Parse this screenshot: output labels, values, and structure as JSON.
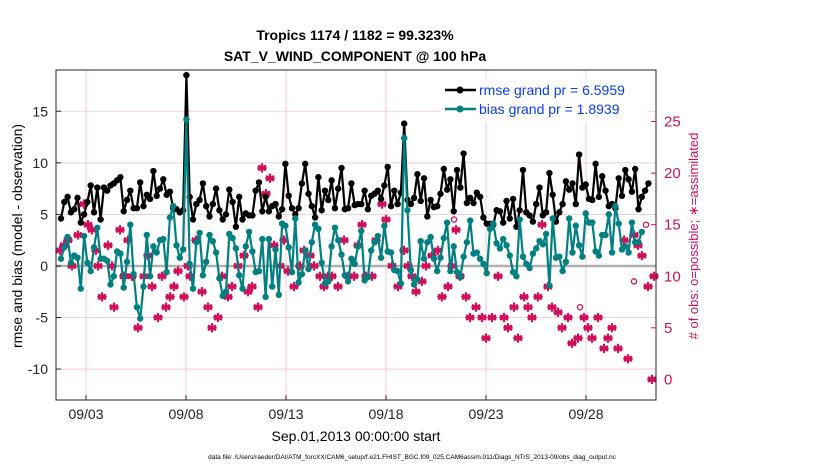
{
  "chart_data": {
    "type": "line",
    "title": "Tropics 1174 / 1182 = 99.323%",
    "subtitle": "SAT_V_WIND_COMPONENT @ 100 hPa",
    "xlabel": "Sep.01,2013 00:00:00 start",
    "ylabel": "rmse and bias (model - observation)",
    "y2label": "# of obs: o=possible; ∗=assimilated",
    "footnote": "data file: /Users/raeder/DAI/ATM_forcXX/CAM6_setup/f.e21.FHIST_BGC.f09_025.CAM6assim.011/Diags_NTrS_2013-09/obs_diag_output.nc",
    "x_range_days": [
      0.5,
      30.5
    ],
    "x_ticks": [
      {
        "day": 2,
        "label": "09/03"
      },
      {
        "day": 7,
        "label": "09/08"
      },
      {
        "day": 12,
        "label": "09/13"
      },
      {
        "day": 17,
        "label": "09/18"
      },
      {
        "day": 22,
        "label": "09/23"
      },
      {
        "day": 27,
        "label": "09/28"
      }
    ],
    "ylim": [
      -13,
      19
    ],
    "y_ticks": [
      -10,
      -5,
      0,
      5,
      10,
      15
    ],
    "y2lim": [
      -2,
      30
    ],
    "y2_ticks": [
      0,
      5,
      10,
      15,
      20,
      25
    ],
    "grid": true,
    "legend_position": "top-right",
    "series": [
      {
        "name": "rmse",
        "legend": "rmse grand pr = 6.5959",
        "color": "#000000",
        "values": [
          4.6,
          6.2,
          6.7,
          5.2,
          5.5,
          6.6,
          4.2,
          5.0,
          6.2,
          7.8,
          5.2,
          7.6,
          4.5,
          7.6,
          7.3,
          7.8,
          8.0,
          8.3,
          8.6,
          5.3,
          6.4,
          7.3,
          5.6,
          5.6,
          8.1,
          5.8,
          6.9,
          6.5,
          9.2,
          6.8,
          7.5,
          8.4,
          6.9,
          7.2,
          5.6,
          5.5,
          5.2,
          5.4,
          18.5,
          6.7,
          4.5,
          6.0,
          6.4,
          8.0,
          5.8,
          4.8,
          6.0,
          7.5,
          5.4,
          4.5,
          5.0,
          7.4,
          6.2,
          3.8,
          6.7,
          4.5,
          5.1,
          4.9,
          4.9,
          7.3,
          8.1,
          5.3,
          6.7,
          5.3,
          5.8,
          6.0,
          4.8,
          5.5,
          9.9,
          6.8,
          5.6,
          5.0,
          5.6,
          8.0,
          9.9,
          7.0,
          5.8,
          4.7,
          8.6,
          5.4,
          7.3,
          6.4,
          8.3,
          5.6,
          7.5,
          9.5,
          5.5,
          5.6,
          8.0,
          5.9,
          6.0,
          6.0,
          7.3,
          5.5,
          6.8,
          7.0,
          7.3,
          6.5,
          7.8,
          9.6,
          5.8,
          7.3,
          6.0,
          7.1,
          13.8,
          6.4,
          6.0,
          6.6,
          8.9,
          6.3,
          8.5,
          4.8,
          6.4,
          5.7,
          5.8,
          7.0,
          9.4,
          7.4,
          8.4,
          5.3,
          9.3,
          7.6,
          10.9,
          6.1,
          6.6,
          6.1,
          7.1,
          6.7,
          4.7,
          4.1,
          4.1,
          4.0,
          5.4,
          5.3,
          4.2,
          6.3,
          4.6,
          6.5,
          3.8,
          5.4,
          9.3,
          5.2,
          4.9,
          4.3,
          6.0,
          7.6,
          4.9,
          5.2,
          9.0,
          6.9,
          4.3,
          5.2,
          6.0,
          8.2,
          7.4,
          8.0,
          6.0,
          10.8,
          7.6,
          7.9,
          6.5,
          6.4,
          9.9,
          6.7,
          8.7,
          7.3,
          5.8,
          6.0,
          5.6,
          8.5,
          6.8,
          9.3,
          8.4,
          7.2,
          9.4,
          5.5,
          6.7,
          7.3,
          8.0
        ]
      },
      {
        "name": "bias",
        "legend": "bias grand pr = 1.8939",
        "color": "#008080",
        "values": [
          0.7,
          1.8,
          2.8,
          0.3,
          1.0,
          0.8,
          -2.2,
          2.9,
          0.3,
          -0.5,
          1.8,
          3.7,
          0.7,
          0.7,
          0.5,
          -1.8,
          -1.0,
          1.4,
          1.2,
          -2.1,
          0.4,
          4.0,
          -0.8,
          -4.0,
          -5.1,
          -2.0,
          3.0,
          -1.0,
          1.9,
          1.3,
          2.5,
          2.6,
          -0.6,
          4.7,
          5.8,
          2.0,
          0.8,
          1.6,
          14.2,
          0.2,
          -2.2,
          2.3,
          3.2,
          -0.9,
          0.4,
          3.0,
          2.4,
          1.3,
          -1.2,
          -2.9,
          -2.5,
          3.1,
          2.7,
          1.7,
          -0.9,
          -2.2,
          1.9,
          3.3,
          1.4,
          -0.6,
          -0.5,
          2.6,
          -3.0,
          2.6,
          -2.0,
          1.6,
          -2.8,
          4.1,
          3.9,
          1.8,
          -0.6,
          4.6,
          -1.6,
          -0.8,
          1.5,
          -0.3,
          2.3,
          4.0,
          3.6,
          0.3,
          -1.7,
          -1.5,
          1.9,
          3.7,
          2.5,
          1.1,
          -0.9,
          -1.5,
          0.7,
          0.2,
          1.9,
          3.4,
          -1.4,
          -1.1,
          1.5,
          2.3,
          2.9,
          0.8,
          3.9,
          1.4,
          1.3,
          -0.4,
          -0.5,
          -1.7,
          12.4,
          5.4,
          -0.4,
          -1.8,
          -1.3,
          2.4,
          0.7,
          2.3,
          2.8,
          0.7,
          -0.5,
          0.8,
          2.7,
          4.2,
          -0.5,
          1.9,
          -0.6,
          -1.1,
          0.9,
          2.3,
          4.4,
          1.2,
          1.3,
          0.7,
          0.2,
          -0.7,
          3.6,
          4.1,
          2.2,
          1.7,
          2.6,
          2.0,
          1.0,
          -0.6,
          -1.0,
          4.5,
          0.9,
          0.2,
          -0.2,
          1.2,
          1.7,
          2.4,
          2.1,
          3.1,
          -1.9,
          4.6,
          0.8,
          0.9,
          -0.5,
          0.4,
          4.6,
          1.3,
          3.9,
          2.0,
          0.9,
          5.1,
          4.2,
          4.2,
          1.4,
          1.0,
          3.0,
          3.0,
          5.0,
          1.3,
          5.8,
          4.1,
          1.6,
          1.9,
          1.3,
          4.2,
          2.3,
          2.3,
          3.3
        ]
      }
    ],
    "obs_assimilated": [
      {
        "day": 0.7,
        "count": 12.5
      },
      {
        "day": 0.9,
        "count": 13.0
      },
      {
        "day": 1.1,
        "count": 13.5
      },
      {
        "day": 1.3,
        "count": 11.0
      },
      {
        "day": 1.6,
        "count": 14.0
      },
      {
        "day": 1.9,
        "count": 17.0
      },
      {
        "day": 2.1,
        "count": 15.0
      },
      {
        "day": 2.3,
        "count": 14.5
      },
      {
        "day": 2.5,
        "count": 12.5
      },
      {
        "day": 2.6,
        "count": 11.0
      },
      {
        "day": 2.8,
        "count": 8.0
      },
      {
        "day": 3.1,
        "count": 13.0
      },
      {
        "day": 3.3,
        "count": 11.0
      },
      {
        "day": 3.4,
        "count": 7.0
      },
      {
        "day": 3.7,
        "count": 14.5
      },
      {
        "day": 3.9,
        "count": 10.0
      },
      {
        "day": 4.1,
        "count": 13.5
      },
      {
        "day": 4.3,
        "count": 10.0
      },
      {
        "day": 4.6,
        "count": 5.0
      },
      {
        "day": 4.9,
        "count": 10.0
      },
      {
        "day": 5.1,
        "count": 12.0
      },
      {
        "day": 5.3,
        "count": 9.0
      },
      {
        "day": 5.6,
        "count": 6.0
      },
      {
        "day": 5.8,
        "count": 10.0
      },
      {
        "day": 6.0,
        "count": 7.0
      },
      {
        "day": 6.2,
        "count": 8.0
      },
      {
        "day": 6.4,
        "count": 9.0
      },
      {
        "day": 6.6,
        "count": 10.5
      },
      {
        "day": 6.9,
        "count": 8.0
      },
      {
        "day": 7.1,
        "count": 11.0
      },
      {
        "day": 7.2,
        "count": 10.0
      },
      {
        "day": 7.5,
        "count": 13.5
      },
      {
        "day": 7.8,
        "count": 8.5
      },
      {
        "day": 8.1,
        "count": 7.0
      },
      {
        "day": 8.3,
        "count": 5.0
      },
      {
        "day": 8.6,
        "count": 6.0
      },
      {
        "day": 8.8,
        "count": 10.0
      },
      {
        "day": 9.1,
        "count": 8.0
      },
      {
        "day": 9.3,
        "count": 9.0
      },
      {
        "day": 9.6,
        "count": 11.0
      },
      {
        "day": 9.9,
        "count": 12.0
      },
      {
        "day": 10.1,
        "count": 8.5
      },
      {
        "day": 10.3,
        "count": 9.0
      },
      {
        "day": 10.6,
        "count": 7.0
      },
      {
        "day": 10.8,
        "count": 20.5
      },
      {
        "day": 11.0,
        "count": 18.0
      },
      {
        "day": 11.2,
        "count": 19.5
      },
      {
        "day": 11.4,
        "count": 13.0
      },
      {
        "day": 11.7,
        "count": 11.0
      },
      {
        "day": 11.9,
        "count": 13.5
      },
      {
        "day": 12.1,
        "count": 10.5
      },
      {
        "day": 12.4,
        "count": 9.0
      },
      {
        "day": 12.7,
        "count": 11.0
      },
      {
        "day": 12.9,
        "count": 12.5
      },
      {
        "day": 13.2,
        "count": 12.0
      },
      {
        "day": 13.4,
        "count": 11.0
      },
      {
        "day": 13.7,
        "count": 10.0
      },
      {
        "day": 13.9,
        "count": 9.0
      },
      {
        "day": 14.1,
        "count": 10.0
      },
      {
        "day": 14.3,
        "count": 10.0
      },
      {
        "day": 14.6,
        "count": 9.0
      },
      {
        "day": 14.9,
        "count": 13.5
      },
      {
        "day": 15.1,
        "count": 10.0
      },
      {
        "day": 15.4,
        "count": 10.0
      },
      {
        "day": 15.6,
        "count": 13.0
      },
      {
        "day": 15.8,
        "count": 15.0
      },
      {
        "day": 16.0,
        "count": 10.0
      },
      {
        "day": 16.3,
        "count": 10.0
      },
      {
        "day": 16.5,
        "count": 13.5
      },
      {
        "day": 16.8,
        "count": 17.0
      },
      {
        "day": 17.0,
        "count": 15.5
      },
      {
        "day": 17.3,
        "count": 11.0
      },
      {
        "day": 17.6,
        "count": 9.0
      },
      {
        "day": 17.9,
        "count": 12.5
      },
      {
        "day": 18.1,
        "count": 11.0
      },
      {
        "day": 18.3,
        "count": 10.0
      },
      {
        "day": 18.5,
        "count": 8.5
      },
      {
        "day": 18.8,
        "count": 9.5
      },
      {
        "day": 19.0,
        "count": 11.0
      },
      {
        "day": 19.3,
        "count": 12.0
      },
      {
        "day": 19.6,
        "count": 12.5
      },
      {
        "day": 19.8,
        "count": 8.0
      },
      {
        "day": 20.1,
        "count": 9.0
      },
      {
        "day": 20.3,
        "count": 11.0
      },
      {
        "day": 20.5,
        "count": 14.5
      },
      {
        "day": 20.7,
        "count": 10.0
      },
      {
        "day": 21.0,
        "count": 8.0
      },
      {
        "day": 21.2,
        "count": 6.0
      },
      {
        "day": 21.5,
        "count": 7.0
      },
      {
        "day": 21.8,
        "count": 6.0
      },
      {
        "day": 22.0,
        "count": 4.0
      },
      {
        "day": 22.3,
        "count": 6.0
      },
      {
        "day": 22.6,
        "count": 10.0
      },
      {
        "day": 22.9,
        "count": 6.0
      },
      {
        "day": 23.1,
        "count": 5.0
      },
      {
        "day": 23.4,
        "count": 7.0
      },
      {
        "day": 23.6,
        "count": 4.0
      },
      {
        "day": 23.9,
        "count": 8.0
      },
      {
        "day": 24.1,
        "count": 7.0
      },
      {
        "day": 24.3,
        "count": 6.0
      },
      {
        "day": 24.6,
        "count": 8.0
      },
      {
        "day": 24.8,
        "count": 15.0
      },
      {
        "day": 25.1,
        "count": 9.0
      },
      {
        "day": 25.3,
        "count": 7.0
      },
      {
        "day": 25.6,
        "count": 6.5
      },
      {
        "day": 25.8,
        "count": 5.0
      },
      {
        "day": 26.1,
        "count": 6.0
      },
      {
        "day": 26.3,
        "count": 3.5
      },
      {
        "day": 26.6,
        "count": 4.0
      },
      {
        "day": 26.9,
        "count": 6.0
      },
      {
        "day": 27.1,
        "count": 5.0
      },
      {
        "day": 27.3,
        "count": 4.0
      },
      {
        "day": 27.6,
        "count": 6.0
      },
      {
        "day": 27.9,
        "count": 3.0
      },
      {
        "day": 28.1,
        "count": 4.0
      },
      {
        "day": 28.3,
        "count": 5.0
      },
      {
        "day": 28.6,
        "count": 3.0
      },
      {
        "day": 28.9,
        "count": 13.5
      },
      {
        "day": 29.1,
        "count": 2.0
      },
      {
        "day": 29.4,
        "count": 14.0
      },
      {
        "day": 29.6,
        "count": 13.0
      },
      {
        "day": 29.8,
        "count": 12.0
      },
      {
        "day": 30.1,
        "count": 9.0
      },
      {
        "day": 30.3,
        "count": 0.0
      },
      {
        "day": 30.4,
        "count": 10.0
      }
    ],
    "obs_possible": [
      {
        "day": 20.4,
        "count": 15.5
      },
      {
        "day": 26.7,
        "count": 7.0
      },
      {
        "day": 29.4,
        "count": 9.5
      },
      {
        "day": 30.0,
        "count": 15.0
      }
    ]
  }
}
